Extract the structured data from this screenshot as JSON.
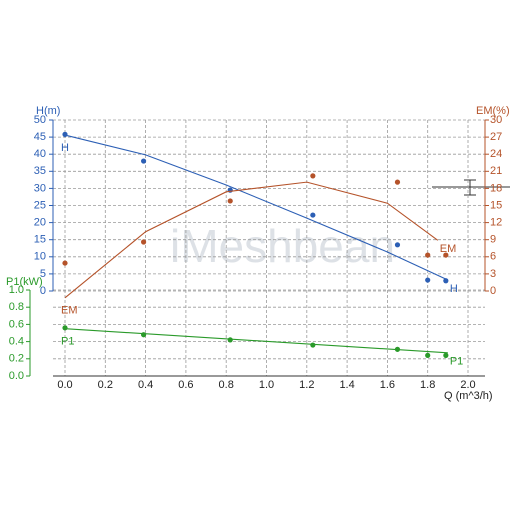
{
  "chart_data": {
    "type": "scatter",
    "watermark": "iMeshbean",
    "xlabel": "Q (m^3/h)",
    "ylabel": "H(m)",
    "y2label": "EM(%)",
    "y3label": "P1(kW)",
    "xlim": [
      0,
      2.0
    ],
    "xticks": [
      {
        "value": 0,
        "label": "0.0"
      },
      0.2,
      0.4,
      0.6,
      0.8,
      {
        "value": 1,
        "label": "1.0"
      },
      1.2,
      1.4,
      1.6,
      1.8,
      {
        "value": 2,
        "label": "2.0"
      }
    ],
    "ylim": [
      0,
      50
    ],
    "yticks": [
      0,
      5,
      10,
      15,
      20,
      25,
      30,
      35,
      40,
      45,
      50
    ],
    "y2lim": [
      0,
      30
    ],
    "y2ticks": [
      0,
      3,
      6,
      9,
      12,
      15,
      18,
      21,
      24,
      27,
      30
    ],
    "y3lim": [
      0,
      1.0
    ],
    "y3ticks": [
      {
        "value": 0,
        "label": "0.0"
      },
      0.2,
      0.4,
      0.6,
      0.8,
      {
        "value": 1,
        "label": "1.0"
      }
    ],
    "grid": true,
    "series": [
      {
        "name": "H",
        "color": "#2c5fb5",
        "axis": "y",
        "x": [
          0,
          0.39,
          0.82,
          1.23,
          1.65,
          1.8,
          1.89
        ],
        "values": [
          45.8,
          38,
          29.5,
          22.2,
          13.5,
          3.2,
          3
        ],
        "curve_x": [
          0,
          0.4,
          0.8,
          1.2,
          1.6,
          1.9
        ],
        "curve_values": [
          45.6,
          39.8,
          31,
          21.3,
          11.4,
          3.2
        ]
      },
      {
        "name": "EM",
        "color": "#b5532a",
        "axis": "y2",
        "x": [
          0,
          0.39,
          0.82,
          1.23,
          1.65,
          1.8,
          1.89
        ],
        "values": [
          4.9,
          8.6,
          15.8,
          20.2,
          19.1,
          6.3,
          6.3
        ],
        "curve_x": [
          0,
          0.4,
          0.8,
          1.2,
          1.6,
          1.85
        ],
        "curve_values": [
          -1.2,
          10.4,
          17.4,
          19.1,
          15.4,
          8.9
        ]
      },
      {
        "name": "P1",
        "color": "#2a9a2a",
        "axis": "y3",
        "x": [
          0,
          0.39,
          0.82,
          1.23,
          1.65,
          1.8,
          1.89
        ],
        "values": [
          0.56,
          0.48,
          0.42,
          0.36,
          0.31,
          0.24,
          0.24
        ],
        "curve_x": [
          0,
          1.9
        ],
        "curve_values": [
          0.55,
          0.27
        ]
      }
    ]
  }
}
